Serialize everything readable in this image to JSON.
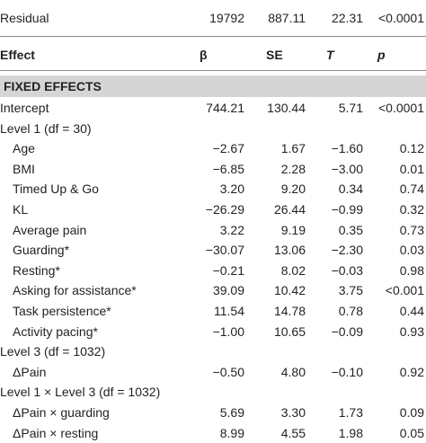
{
  "table": {
    "top_rows": [
      [
        "Residual",
        "19792",
        "887.11",
        "22.31",
        "<0.0001"
      ]
    ],
    "header": [
      "Effect",
      "β",
      "SE",
      "T",
      "p"
    ],
    "section": "FIXED EFFECTS",
    "rows": [
      [
        "Intercept",
        "744.21",
        "130.44",
        "5.71",
        "<0.0001"
      ],
      [
        "Level 1 (df = 30)",
        "",
        "",
        "",
        ""
      ],
      [
        "Age",
        "−2.67",
        "1.67",
        "−1.60",
        "0.12"
      ],
      [
        "BMI",
        "−6.85",
        "2.28",
        "−3.00",
        "0.01"
      ],
      [
        "Timed Up & Go",
        "3.20",
        "9.20",
        "0.34",
        "0.74"
      ],
      [
        "KL",
        "−26.29",
        "26.44",
        "−0.99",
        "0.32"
      ],
      [
        "Average pain",
        "3.22",
        "9.19",
        "0.35",
        "0.73"
      ],
      [
        "Guarding*",
        "−30.07",
        "13.06",
        "−2.30",
        "0.03"
      ],
      [
        "Resting*",
        "−0.21",
        "8.02",
        "−0.03",
        "0.98"
      ],
      [
        "Asking for assistance*",
        "39.09",
        "10.42",
        "3.75",
        "<0.001"
      ],
      [
        "Task persistence*",
        "11.54",
        "14.78",
        "0.78",
        "0.44"
      ],
      [
        "Activity pacing*",
        "−1.00",
        "10.65",
        "−0.09",
        "0.93"
      ],
      [
        "Level 3 (df = 1032)",
        "",
        "",
        "",
        ""
      ],
      [
        "ΔPain",
        "−0.50",
        "4.80",
        "−0.10",
        "0.92"
      ],
      [
        "Level 1 × Level 3 (df = 1032)",
        "",
        "",
        "",
        ""
      ],
      [
        "ΔPain × guarding",
        "5.69",
        "3.30",
        "1.73",
        "0.09"
      ],
      [
        "ΔPain × resting",
        "8.99",
        "4.55",
        "1.98",
        "0.05"
      ]
    ]
  }
}
